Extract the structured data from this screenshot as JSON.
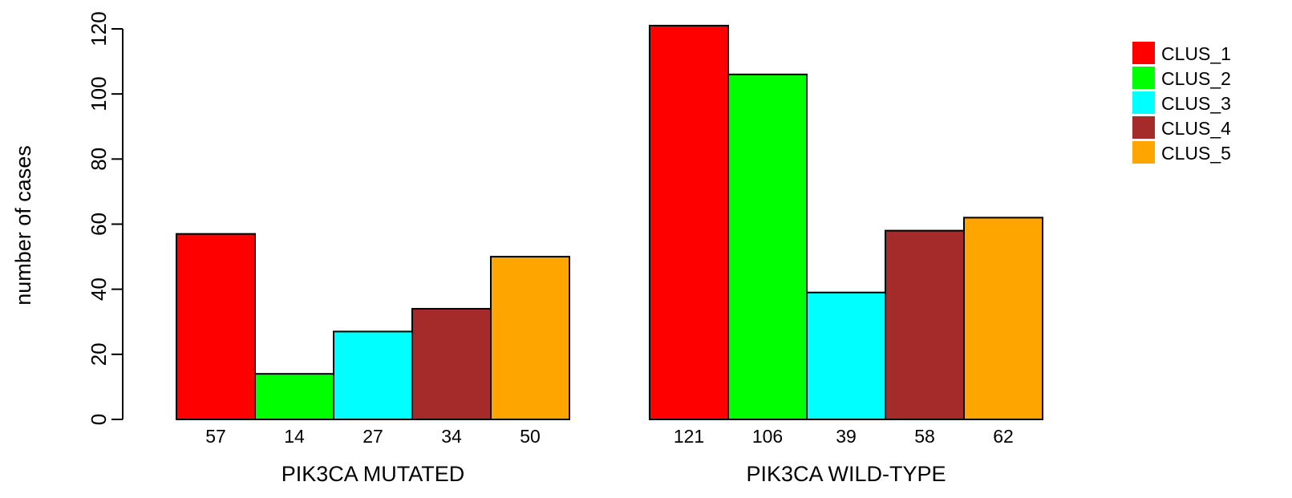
{
  "chart_data": {
    "type": "bar",
    "ylabel": "number of cases",
    "ylim": [
      0,
      120
    ],
    "yticks": [
      0,
      20,
      40,
      60,
      80,
      100,
      120
    ],
    "legend_position": "top-right",
    "series": [
      {
        "name": "CLUS_1",
        "color": "#FF0000"
      },
      {
        "name": "CLUS_2",
        "color": "#00FF00"
      },
      {
        "name": "CLUS_3",
        "color": "#00FFFF"
      },
      {
        "name": "CLUS_4",
        "color": "#A52A2A"
      },
      {
        "name": "CLUS_5",
        "color": "#FFA500"
      }
    ],
    "groups": [
      {
        "label": "PIK3CA MUTATED",
        "values": [
          57,
          14,
          27,
          34,
          50
        ],
        "value_labels": [
          "57",
          "14",
          "27",
          "34",
          "50"
        ]
      },
      {
        "label": "PIK3CA WILD-TYPE",
        "values": [
          121,
          106,
          39,
          58,
          62
        ],
        "value_labels": [
          "121",
          "106",
          "39",
          "58",
          "62"
        ]
      }
    ]
  }
}
